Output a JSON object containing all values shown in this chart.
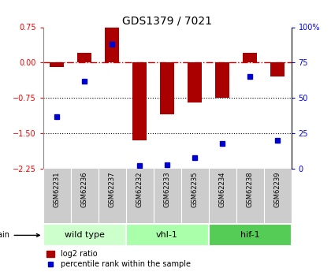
{
  "title": "GDS1379 / 7021",
  "samples": [
    "GSM62231",
    "GSM62236",
    "GSM62237",
    "GSM62232",
    "GSM62233",
    "GSM62235",
    "GSM62234",
    "GSM62238",
    "GSM62239"
  ],
  "log2_ratio": [
    -0.1,
    0.2,
    0.75,
    -1.65,
    -1.1,
    -0.85,
    -0.75,
    0.2,
    -0.3
  ],
  "percentile": [
    37,
    62,
    88,
    2,
    3,
    8,
    18,
    65,
    20
  ],
  "groups": [
    {
      "label": "wild type",
      "start": 0,
      "end": 3,
      "color": "#ccffcc"
    },
    {
      "label": "vhl-1",
      "start": 3,
      "end": 6,
      "color": "#aaffaa"
    },
    {
      "label": "hif-1",
      "start": 6,
      "end": 9,
      "color": "#55cc55"
    }
  ],
  "ylim_left": [
    -2.25,
    0.75
  ],
  "ylim_right": [
    0,
    100
  ],
  "bar_color": "#aa0000",
  "dot_color": "#0000cc",
  "hline_color": "#cc0000",
  "dotted_line_color": "#000000",
  "yticks_left": [
    0.75,
    0,
    -0.75,
    -1.5,
    -2.25
  ],
  "yticks_right": [
    100,
    75,
    50,
    25,
    0
  ],
  "label_bg": "#cccccc",
  "legend_bar_label": "log2 ratio",
  "legend_dot_label": "percentile rank within the sample"
}
